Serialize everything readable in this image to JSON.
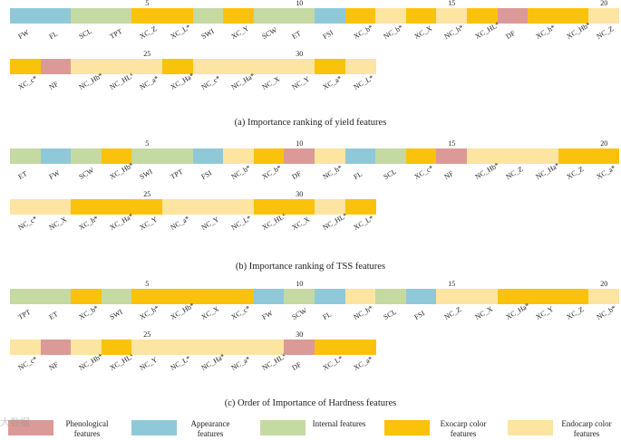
{
  "colors": {
    "phenological": "#DB9A97",
    "appearance": "#8FC9D8",
    "internal": "#C5D9A2",
    "exocarp": "#FBC20B",
    "endocarp": "#FCE4A1"
  },
  "panels": [
    {
      "caption": "(a) Importance ranking of yield features",
      "row_numbers": [
        [
          "5",
          "10",
          "15",
          "20"
        ],
        [
          "25",
          "30"
        ]
      ],
      "features": [
        {
          "label": "FW",
          "cat": "appearance"
        },
        {
          "label": "FL",
          "cat": "appearance"
        },
        {
          "label": "SCL",
          "cat": "internal"
        },
        {
          "label": "TPT",
          "cat": "internal"
        },
        {
          "label": "XC_Z",
          "cat": "exocarp"
        },
        {
          "label": "XC_L*",
          "cat": "exocarp"
        },
        {
          "label": "SWI",
          "cat": "internal"
        },
        {
          "label": "XC_Y",
          "cat": "exocarp"
        },
        {
          "label": "SCW",
          "cat": "internal"
        },
        {
          "label": "ET",
          "cat": "internal"
        },
        {
          "label": "FSI",
          "cat": "appearance"
        },
        {
          "label": "XC_b*",
          "cat": "exocarp"
        },
        {
          "label": "NC_b*",
          "cat": "endocarp"
        },
        {
          "label": "XC_X",
          "cat": "exocarp"
        },
        {
          "label": "NC_h*",
          "cat": "endocarp"
        },
        {
          "label": "XC_HL*",
          "cat": "exocarp"
        },
        {
          "label": "DF",
          "cat": "phenological"
        },
        {
          "label": "XC_h*",
          "cat": "exocarp"
        },
        {
          "label": "XC_Hb*",
          "cat": "exocarp"
        },
        {
          "label": "NC_Z",
          "cat": "endocarp"
        },
        {
          "label": "XC_c*",
          "cat": "exocarp"
        },
        {
          "label": "NF",
          "cat": "phenological"
        },
        {
          "label": "NC_Hb*",
          "cat": "endocarp"
        },
        {
          "label": "NC_HL*",
          "cat": "endocarp"
        },
        {
          "label": "NC_a*",
          "cat": "endocarp"
        },
        {
          "label": "XC_Ha*",
          "cat": "exocarp"
        },
        {
          "label": "NC_c*",
          "cat": "endocarp"
        },
        {
          "label": "NC_Ha*",
          "cat": "endocarp"
        },
        {
          "label": "NC_X",
          "cat": "endocarp"
        },
        {
          "label": "NC_Y",
          "cat": "endocarp"
        },
        {
          "label": "XC_a*",
          "cat": "exocarp"
        },
        {
          "label": "NC_L*",
          "cat": "endocarp"
        }
      ]
    },
    {
      "caption": "(b) Importance ranking of TSS features",
      "row_numbers": [
        [
          "5",
          "10",
          "15",
          "20"
        ],
        [
          "25",
          "30"
        ]
      ],
      "features": [
        {
          "label": "ET",
          "cat": "internal"
        },
        {
          "label": "FW",
          "cat": "appearance"
        },
        {
          "label": "SCW",
          "cat": "internal"
        },
        {
          "label": "XC_Hb*",
          "cat": "exocarp"
        },
        {
          "label": "SWI",
          "cat": "internal"
        },
        {
          "label": "TPT",
          "cat": "internal"
        },
        {
          "label": "FSI",
          "cat": "appearance"
        },
        {
          "label": "NC_b*",
          "cat": "endocarp"
        },
        {
          "label": "XC_b*",
          "cat": "exocarp"
        },
        {
          "label": "DF",
          "cat": "phenological"
        },
        {
          "label": "NC_h*",
          "cat": "endocarp"
        },
        {
          "label": "FL",
          "cat": "appearance"
        },
        {
          "label": "SCL",
          "cat": "internal"
        },
        {
          "label": "XC_c*",
          "cat": "exocarp"
        },
        {
          "label": "NF",
          "cat": "phenological"
        },
        {
          "label": "NC_Hb*",
          "cat": "endocarp"
        },
        {
          "label": "NC_Z",
          "cat": "endocarp"
        },
        {
          "label": "NC_Ha*",
          "cat": "endocarp"
        },
        {
          "label": "XC_Z",
          "cat": "exocarp"
        },
        {
          "label": "XC_a*",
          "cat": "exocarp"
        },
        {
          "label": "NC_c*",
          "cat": "endocarp"
        },
        {
          "label": "NC_X",
          "cat": "endocarp"
        },
        {
          "label": "XC_h*",
          "cat": "exocarp"
        },
        {
          "label": "XC_Ha*",
          "cat": "exocarp"
        },
        {
          "label": "XC_Y",
          "cat": "exocarp"
        },
        {
          "label": "NC_a*",
          "cat": "endocarp"
        },
        {
          "label": "NC_Y",
          "cat": "endocarp"
        },
        {
          "label": "NC_L*",
          "cat": "endocarp"
        },
        {
          "label": "XC_HL*",
          "cat": "exocarp"
        },
        {
          "label": "XC_X",
          "cat": "exocarp"
        },
        {
          "label": "NC_HL*",
          "cat": "endocarp"
        },
        {
          "label": "XC_L*",
          "cat": "exocarp"
        }
      ]
    },
    {
      "caption": "(c) Order of Importance of Hardness features",
      "row_numbers": [
        [
          "5",
          "10",
          "15",
          "20"
        ],
        [
          "25",
          "30"
        ]
      ],
      "features": [
        {
          "label": "TPT",
          "cat": "internal"
        },
        {
          "label": "ET",
          "cat": "internal"
        },
        {
          "label": "XC_b*",
          "cat": "exocarp"
        },
        {
          "label": "SWI",
          "cat": "internal"
        },
        {
          "label": "XC_h*",
          "cat": "exocarp"
        },
        {
          "label": "XC_Hb*",
          "cat": "exocarp"
        },
        {
          "label": "XC_X",
          "cat": "exocarp"
        },
        {
          "label": "XC_c*",
          "cat": "exocarp"
        },
        {
          "label": "FW",
          "cat": "appearance"
        },
        {
          "label": "SCW",
          "cat": "internal"
        },
        {
          "label": "FL",
          "cat": "appearance"
        },
        {
          "label": "NC_h*",
          "cat": "endocarp"
        },
        {
          "label": "SCL",
          "cat": "internal"
        },
        {
          "label": "FSI",
          "cat": "appearance"
        },
        {
          "label": "NC_Z",
          "cat": "endocarp"
        },
        {
          "label": "NC_X",
          "cat": "endocarp"
        },
        {
          "label": "XC_Ha*",
          "cat": "exocarp"
        },
        {
          "label": "XC_Y",
          "cat": "exocarp"
        },
        {
          "label": "XC_Z",
          "cat": "exocarp"
        },
        {
          "label": "NC_b*",
          "cat": "endocarp"
        },
        {
          "label": "NC_c*",
          "cat": "endocarp"
        },
        {
          "label": "NF",
          "cat": "phenological"
        },
        {
          "label": "NC_Hb*",
          "cat": "endocarp"
        },
        {
          "label": "XC_HL*",
          "cat": "exocarp"
        },
        {
          "label": "NC_Y",
          "cat": "endocarp"
        },
        {
          "label": "NC_L*",
          "cat": "endocarp"
        },
        {
          "label": "NC_Ha*",
          "cat": "endocarp"
        },
        {
          "label": "NC_a*",
          "cat": "endocarp"
        },
        {
          "label": "NC_HL*",
          "cat": "endocarp"
        },
        {
          "label": "DF",
          "cat": "phenological"
        },
        {
          "label": "XC_L*",
          "cat": "exocarp"
        },
        {
          "label": "XC_a*",
          "cat": "exocarp"
        }
      ]
    }
  ],
  "legend": [
    {
      "cat": "phenological",
      "text": "Phenological features"
    },
    {
      "cat": "appearance",
      "text": "Appearance features"
    },
    {
      "cat": "internal",
      "text": "Internal features"
    },
    {
      "cat": "exocarp",
      "text": "Exocarp color features"
    },
    {
      "cat": "endocarp",
      "text": "Endocarp color features"
    }
  ],
  "watermark": "大数据"
}
